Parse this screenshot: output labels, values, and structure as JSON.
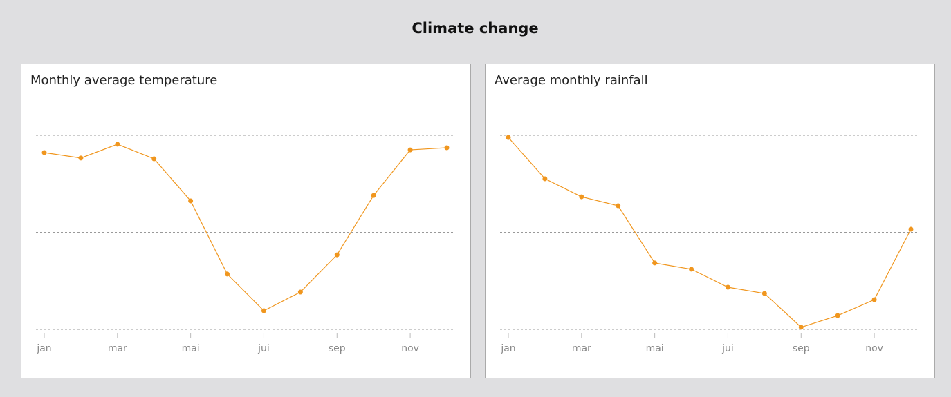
{
  "title": "Climate change",
  "chart_data": [
    {
      "type": "line",
      "title": "Monthly average temperature",
      "categories": [
        "jan",
        null,
        "mar",
        null,
        "mai",
        null,
        "jui",
        null,
        "sep",
        null,
        "nov",
        null
      ],
      "values": [
        91.1,
        88.3,
        95.4,
        87.9,
        66.2,
        28.5,
        9.6,
        19.2,
        38.4,
        69.0,
        92.5,
        93.6
      ],
      "color": "#f0961e",
      "ylim": [
        0,
        100
      ],
      "yticks": [
        0,
        50,
        100
      ],
      "grid": true
    },
    {
      "type": "line",
      "title": "Average monthly rainfall",
      "categories": [
        "jan",
        null,
        "mar",
        null,
        "mai",
        null,
        "jui",
        null,
        "sep",
        null,
        "nov",
        null
      ],
      "values": [
        98.9,
        77.6,
        68.3,
        63.7,
        34.2,
        31.0,
        21.7,
        18.5,
        1.1,
        7.1,
        15.3,
        51.6
      ],
      "color": "#f0961e",
      "ylim": [
        0,
        100
      ],
      "yticks": [
        0,
        50,
        100
      ],
      "grid": true
    }
  ]
}
